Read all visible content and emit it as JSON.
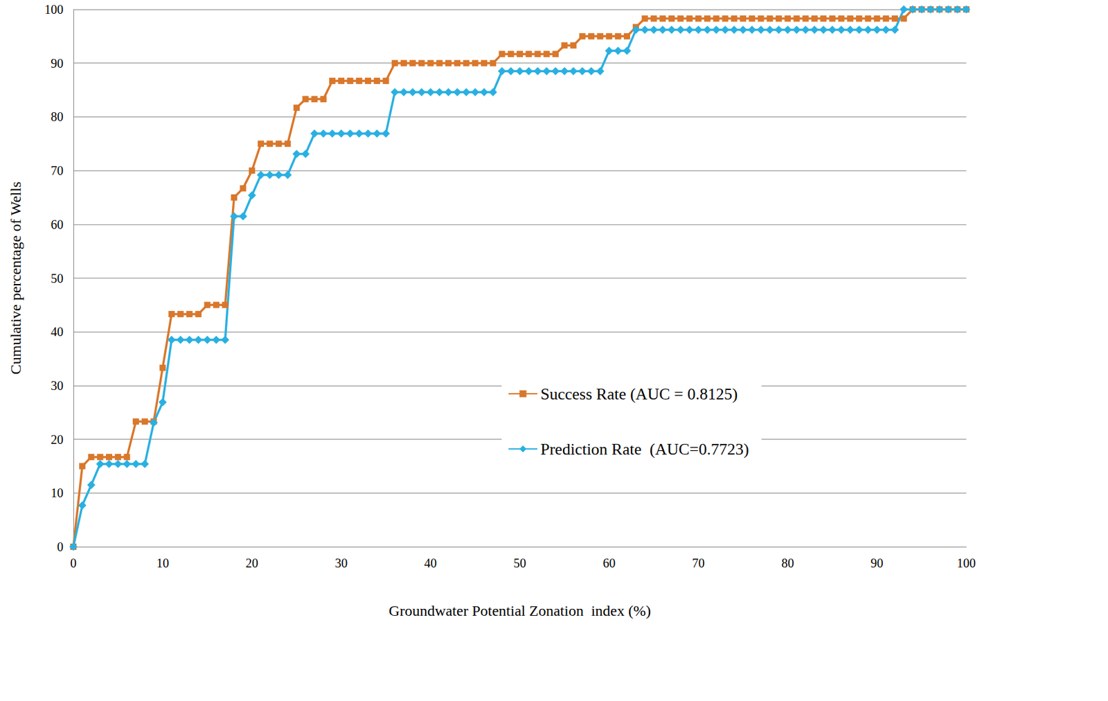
{
  "chart_data": {
    "type": "line",
    "x_label": "Groundwater Potential Zonation  index (%)",
    "y_label": "Cumulative percentage of Wells",
    "x": [
      0,
      1,
      2,
      3,
      4,
      5,
      6,
      7,
      8,
      9,
      10,
      11,
      12,
      13,
      14,
      15,
      16,
      17,
      18,
      19,
      20,
      21,
      22,
      23,
      24,
      25,
      26,
      27,
      28,
      29,
      30,
      31,
      32,
      33,
      34,
      35,
      36,
      37,
      38,
      39,
      40,
      41,
      42,
      43,
      44,
      45,
      46,
      47,
      48,
      49,
      50,
      51,
      52,
      53,
      54,
      55,
      56,
      57,
      58,
      59,
      60,
      61,
      62,
      63,
      64,
      65,
      66,
      67,
      68,
      69,
      70,
      71,
      72,
      73,
      74,
      75,
      76,
      77,
      78,
      79,
      80,
      81,
      82,
      83,
      84,
      85,
      86,
      87,
      88,
      89,
      90,
      91,
      92,
      93,
      94,
      95,
      96,
      97,
      98,
      99,
      100
    ],
    "series": [
      {
        "name": "Success Rate (AUC = 0.8125)",
        "color": "#d9772b",
        "marker": "square",
        "line_style": "solid",
        "values": [
          0,
          15,
          16.7,
          16.7,
          16.7,
          16.7,
          16.7,
          23.3,
          23.3,
          23.3,
          33.3,
          43.3,
          43.3,
          43.3,
          43.3,
          45,
          45,
          45,
          65,
          66.7,
          70,
          75,
          75,
          75,
          75,
          81.7,
          83.3,
          83.3,
          83.3,
          86.7,
          86.7,
          86.7,
          86.7,
          86.7,
          86.7,
          86.7,
          90,
          90,
          90,
          90,
          90,
          90,
          90,
          90,
          90,
          90,
          90,
          90,
          91.7,
          91.7,
          91.7,
          91.7,
          91.7,
          91.7,
          91.7,
          93.3,
          93.3,
          95,
          95,
          95,
          95,
          95,
          95,
          96.7,
          98.3,
          98.3,
          98.3,
          98.3,
          98.3,
          98.3,
          98.3,
          98.3,
          98.3,
          98.3,
          98.3,
          98.3,
          98.3,
          98.3,
          98.3,
          98.3,
          98.3,
          98.3,
          98.3,
          98.3,
          98.3,
          98.3,
          98.3,
          98.3,
          98.3,
          98.3,
          98.3,
          98.3,
          98.3,
          98.3,
          100,
          100,
          100,
          100,
          100,
          100,
          100
        ]
      },
      {
        "name": "Prediction Rate  (AUC=0.7723)",
        "color": "#29b0e2",
        "marker": "diamond",
        "line_style": "solid",
        "values": [
          0,
          7.7,
          11.5,
          15.4,
          15.4,
          15.4,
          15.4,
          15.4,
          15.4,
          23.1,
          26.9,
          38.5,
          38.5,
          38.5,
          38.5,
          38.5,
          38.5,
          38.5,
          61.5,
          61.5,
          65.4,
          69.2,
          69.2,
          69.2,
          69.2,
          73.1,
          73.1,
          76.9,
          76.9,
          76.9,
          76.9,
          76.9,
          76.9,
          76.9,
          76.9,
          76.9,
          84.6,
          84.6,
          84.6,
          84.6,
          84.6,
          84.6,
          84.6,
          84.6,
          84.6,
          84.6,
          84.6,
          84.6,
          88.5,
          88.5,
          88.5,
          88.5,
          88.5,
          88.5,
          88.5,
          88.5,
          88.5,
          88.5,
          88.5,
          88.5,
          92.3,
          92.3,
          92.3,
          96.2,
          96.2,
          96.2,
          96.2,
          96.2,
          96.2,
          96.2,
          96.2,
          96.2,
          96.2,
          96.2,
          96.2,
          96.2,
          96.2,
          96.2,
          96.2,
          96.2,
          96.2,
          96.2,
          96.2,
          96.2,
          96.2,
          96.2,
          96.2,
          96.2,
          96.2,
          96.2,
          96.2,
          96.2,
          96.2,
          100,
          100,
          100,
          100,
          100,
          100,
          100,
          100
        ]
      }
    ],
    "xlim": [
      0,
      100
    ],
    "xticks": [
      0,
      10,
      20,
      30,
      40,
      50,
      60,
      70,
      80,
      90,
      100
    ],
    "ylim": [
      0,
      100
    ],
    "yticks": [
      0,
      10,
      20,
      30,
      40,
      50,
      60,
      70,
      80,
      90,
      100
    ],
    "grid": true,
    "legend": "lower right"
  }
}
